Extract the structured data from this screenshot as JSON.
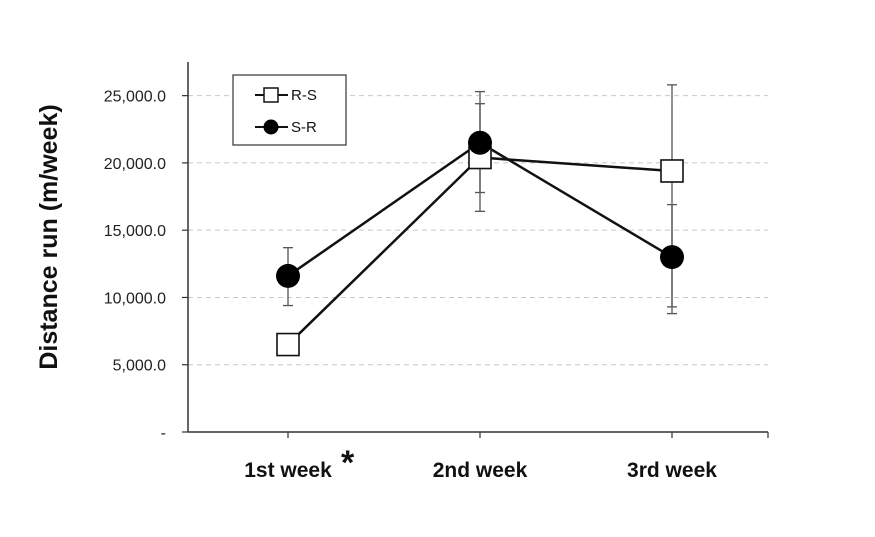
{
  "chart_data": {
    "type": "line",
    "title": "",
    "xlabel": "",
    "ylabel": "Distance run (m/week)",
    "categories": [
      "1st week",
      "2nd week",
      "3rd week"
    ],
    "y_tick_labels": [
      "-",
      "5,000.0",
      "10,000.0",
      "15,000.0",
      "20,000.0",
      "25,000.0"
    ],
    "y_ticks": [
      0,
      5000,
      10000,
      15000,
      20000,
      25000
    ],
    "ylim": [
      0,
      27500
    ],
    "grid": true,
    "legend_position": "top-left",
    "significance_marker": {
      "category": "1st week",
      "text": "*"
    },
    "series": [
      {
        "name": "R-S",
        "marker": "open-square",
        "values": [
          6500,
          20400,
          19400
        ],
        "err_low": [
          null,
          16400,
          8800
        ],
        "err_high": [
          null,
          24400,
          25800
        ]
      },
      {
        "name": "S-R",
        "marker": "filled-circle",
        "values": [
          11600,
          21500,
          13000
        ],
        "err_low": [
          9400,
          17800,
          9300
        ],
        "err_high": [
          13700,
          25300,
          16900
        ]
      }
    ]
  }
}
